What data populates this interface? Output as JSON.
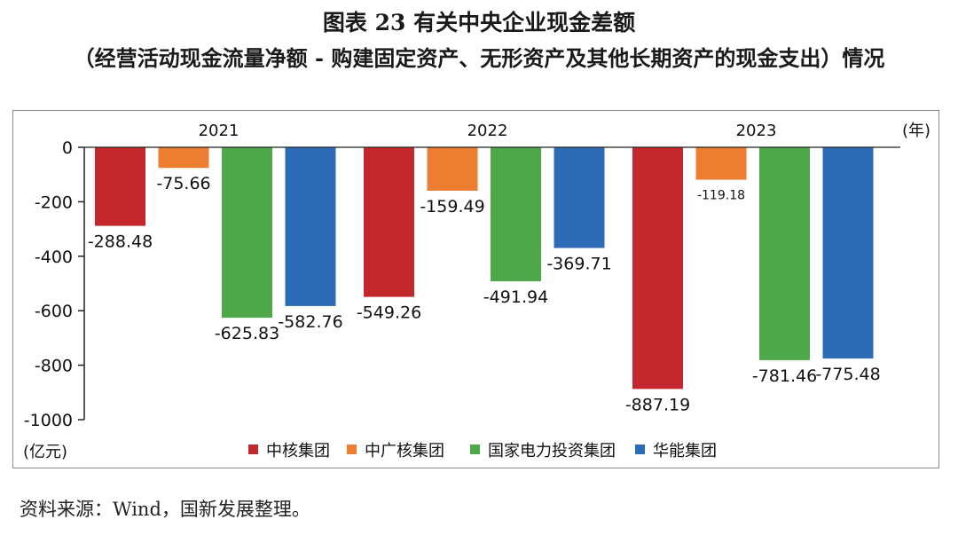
{
  "title": "图表 23  有关中央企业现金差额",
  "subtitle": "（经营活动现金流量净额 - 购建固定资产、无形资产及其他长期资产的现金支出）情况",
  "source": "资料来源：Wind，国新发展整理。",
  "chart_data": {
    "type": "bar",
    "categories": [
      "2021",
      "2022",
      "2023"
    ],
    "x_unit": "(年)",
    "y_unit": "(亿元)",
    "ylim": [
      -1000,
      0
    ],
    "yticks": [
      0,
      -200,
      -400,
      -600,
      -800,
      -1000
    ],
    "ytick_labels": [
      "0",
      "-200",
      "-400",
      "-600",
      "-800",
      "-1000"
    ],
    "legend_position": "bottom",
    "series": [
      {
        "name": "中核集团",
        "color": "#c1272d",
        "values": [
          -288.48,
          -549.26,
          -887.19
        ],
        "labels": [
          "-288.48",
          "-549.26",
          "-887.19"
        ]
      },
      {
        "name": "中广核集团",
        "color": "#ed7d31",
        "values": [
          -75.66,
          -159.49,
          -119.18
        ],
        "labels": [
          "-75.66",
          "-159.49",
          "-119.18"
        ]
      },
      {
        "name": "国家电力投资集团",
        "color": "#4ea84a",
        "values": [
          -625.83,
          -491.94,
          -781.46
        ],
        "labels": [
          "-625.83",
          "-491.94",
          "-781.46"
        ]
      },
      {
        "name": "华能集团",
        "color": "#2e6bb7",
        "values": [
          -582.76,
          -369.71,
          -775.48
        ],
        "labels": [
          "-582.76",
          "-369.71",
          "-775.48"
        ]
      }
    ]
  }
}
